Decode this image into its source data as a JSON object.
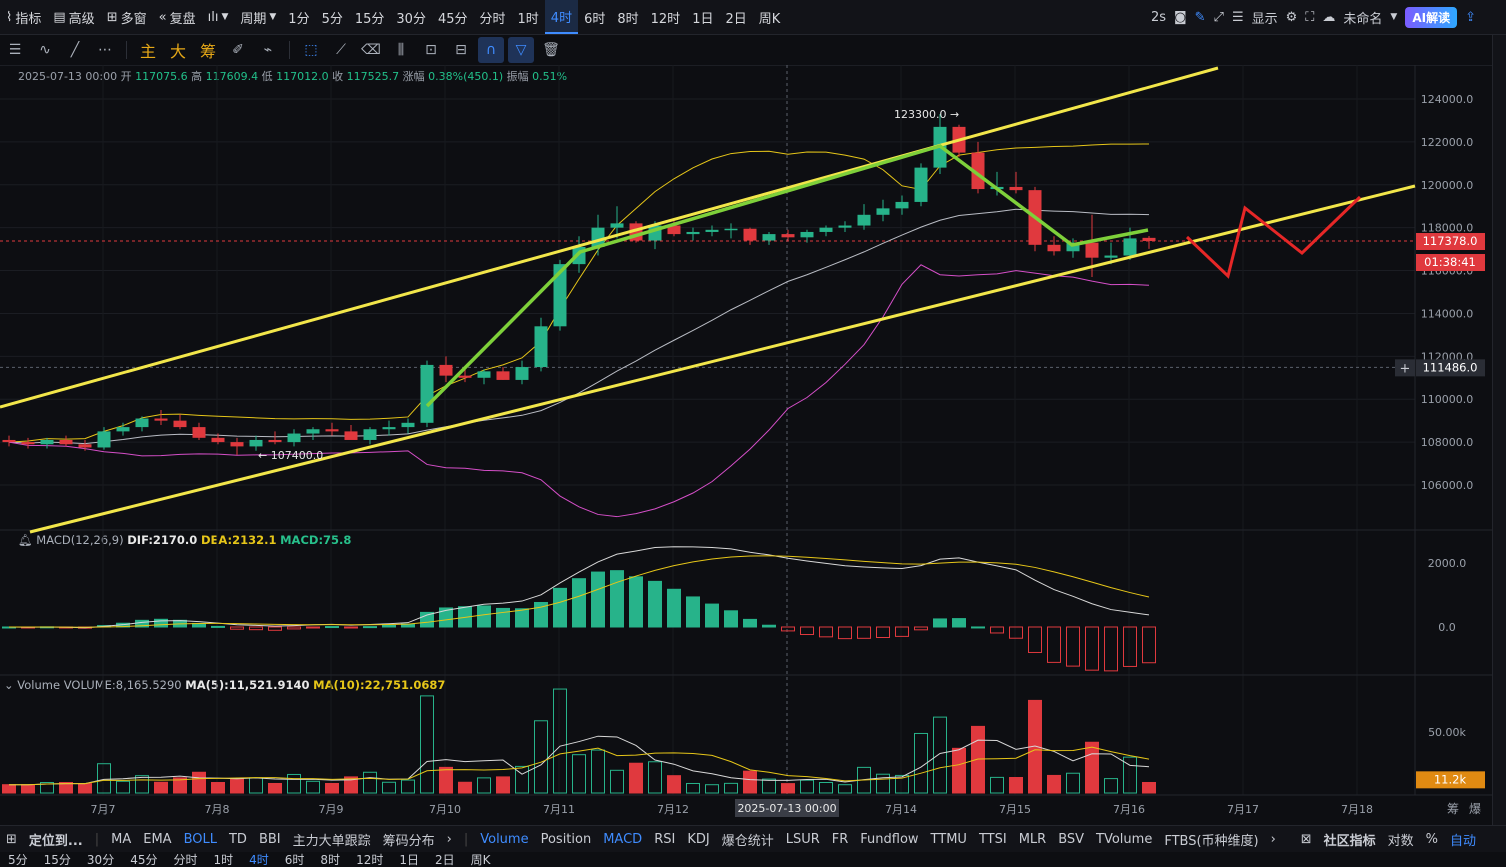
{
  "topbar": {
    "items": [
      "指标",
      "高级",
      "多窗",
      "复盘",
      "",
      "周期",
      "1分",
      "5分",
      "15分",
      "30分",
      "45分",
      "分时",
      "1时",
      "4时",
      "6时",
      "8时",
      "12时",
      "1日",
      "2日",
      "周K"
    ],
    "active_index": 13,
    "right": {
      "refresh": "2s",
      "display": "显示",
      "unnamed": "未命名",
      "ai": "AI解读"
    }
  },
  "toolbar": {
    "main": "主",
    "big": "大",
    "chips": "筹"
  },
  "ohlc": {
    "date": "2025-07-13 00:00",
    "open_label": "开",
    "open": "117075.6",
    "high_label": "高",
    "high": "117609.4",
    "low_label": "低",
    "low": "117012.0",
    "close_label": "收",
    "close": "117525.7",
    "chg_label": "涨幅",
    "chg": "0.38%(450.1)",
    "amp_label": "振幅",
    "amp": "0.51%"
  },
  "macd": {
    "name": "MACD(12,26,9)",
    "dif": "DIF:2170.0",
    "dea": "DEA:2132.1",
    "macd": "MACD:75.8"
  },
  "volume": {
    "name": "Volume",
    "vol": "VOLUME:8,165.5290",
    "ma5": "MA(5):11,521.9140",
    "ma10": "MA(10):22,751.0687"
  },
  "price_axis": [
    "124000.0",
    "122000.0",
    "120000.0",
    "118000.0",
    "116000.0",
    "114000.0",
    "112000.0",
    "110000.0",
    "108000.0",
    "106000.0"
  ],
  "price_tags": {
    "current": "117378.0",
    "countdown": "01:38:41",
    "crosshair": "111486.0"
  },
  "macd_axis": [
    "2000.0",
    "0.0"
  ],
  "vol_axis": {
    "tick": "50.00k",
    "tag": "11.2k"
  },
  "annotations": {
    "high": "123300.0",
    "low": "107400.0"
  },
  "x_axis": [
    "7月7",
    "7月8",
    "7月9",
    "7月10",
    "7月11",
    "7月12",
    "7月14",
    "7月15",
    "7月16",
    "7月17",
    "7月18"
  ],
  "x_cursor": "2025-07-13 00:00",
  "x_corner": [
    "筹",
    "爆"
  ],
  "bottombar": {
    "locate": "定位到...",
    "items": [
      "MA",
      "EMA",
      "BOLL",
      "TD",
      "BBI",
      "主力大单跟踪",
      "筹码分布"
    ],
    "active": "BOLL",
    "sub_items": [
      "Volume",
      "Position",
      "MACD",
      "RSI",
      "KDJ",
      "爆仓统计",
      "LSUR",
      "FR",
      "Fundflow",
      "TTMU",
      "TTSI",
      "MLR",
      "BSV",
      "TVolume",
      "FTBS(币种维度)"
    ],
    "sub_active": [
      "Volume",
      "MACD"
    ],
    "right": [
      "社区指标",
      "对数",
      "%",
      "自动"
    ],
    "right_active": "自动"
  },
  "bottom2": {
    "items": [
      "5分",
      "15分",
      "30分",
      "45分",
      "分时",
      "1时",
      "4时",
      "6时",
      "8时",
      "12时",
      "1日",
      "2日",
      "周K"
    ],
    "active": "4时"
  },
  "chart_data": {
    "type": "candlestick",
    "timeframe": "4时",
    "candles": [
      [
        108100,
        108300,
        107800,
        108000
      ],
      [
        108000,
        108200,
        107700,
        107900
      ],
      [
        107900,
        108200,
        107700,
        108100
      ],
      [
        108100,
        108300,
        107800,
        107900
      ],
      [
        107900,
        108100,
        107600,
        107750
      ],
      [
        107750,
        108700,
        107650,
        108500
      ],
      [
        108500,
        108900,
        108300,
        108700
      ],
      [
        108700,
        109200,
        108500,
        109100
      ],
      [
        109100,
        109500,
        108800,
        109000
      ],
      [
        109000,
        109300,
        108600,
        108700
      ],
      [
        108700,
        108900,
        108100,
        108200
      ],
      [
        108200,
        108400,
        107900,
        108000
      ],
      [
        108000,
        108200,
        107400,
        107800
      ],
      [
        107800,
        108300,
        107600,
        108100
      ],
      [
        108100,
        108500,
        107900,
        108000
      ],
      [
        108000,
        108600,
        107800,
        108400
      ],
      [
        108400,
        108700,
        108100,
        108600
      ],
      [
        108600,
        108900,
        108300,
        108500
      ],
      [
        108500,
        108800,
        108200,
        108100
      ],
      [
        108100,
        108700,
        107900,
        108600
      ],
      [
        108600,
        109000,
        108300,
        108700
      ],
      [
        108700,
        109100,
        108400,
        108900
      ],
      [
        108900,
        111800,
        108700,
        111600
      ],
      [
        111600,
        112000,
        110800,
        111100
      ],
      [
        111100,
        111500,
        110800,
        111000
      ],
      [
        111000,
        111400,
        110700,
        111300
      ],
      [
        111300,
        111500,
        110900,
        110900
      ],
      [
        110900,
        111800,
        110700,
        111500
      ],
      [
        111500,
        113800,
        111300,
        113400
      ],
      [
        113400,
        116500,
        113200,
        116300
      ],
      [
        116300,
        117600,
        115900,
        117100
      ],
      [
        117100,
        118600,
        116700,
        118000
      ],
      [
        118000,
        119000,
        117500,
        118200
      ],
      [
        118200,
        118300,
        117300,
        117400
      ],
      [
        117400,
        118300,
        117000,
        118100
      ],
      [
        118100,
        118300,
        117600,
        117700
      ],
      [
        117700,
        118000,
        117400,
        117800
      ],
      [
        117800,
        118100,
        117600,
        117900
      ],
      [
        117900,
        118200,
        117500,
        117950
      ],
      [
        117950,
        118000,
        117200,
        117400
      ],
      [
        117400,
        117800,
        117200,
        117700
      ],
      [
        117700,
        117900,
        117400,
        117550
      ],
      [
        117550,
        117900,
        117300,
        117800
      ],
      [
        117800,
        118100,
        117600,
        118000
      ],
      [
        118000,
        118300,
        117800,
        118100
      ],
      [
        118100,
        119100,
        117900,
        118600
      ],
      [
        118600,
        119300,
        118300,
        118900
      ],
      [
        118900,
        119500,
        118600,
        119200
      ],
      [
        119200,
        121000,
        119000,
        120800
      ],
      [
        120800,
        123300,
        120500,
        122700
      ],
      [
        122700,
        122800,
        121300,
        121500
      ],
      [
        121500,
        122000,
        119600,
        119800
      ],
      [
        119800,
        120600,
        119500,
        119900
      ],
      [
        119900,
        120600,
        119600,
        119750
      ],
      [
        119750,
        119900,
        116900,
        117200
      ],
      [
        117200,
        117600,
        116700,
        116900
      ],
      [
        116900,
        117500,
        116600,
        117300
      ],
      [
        117300,
        118600,
        115700,
        116600
      ],
      [
        116600,
        117300,
        116300,
        116700
      ],
      [
        116700,
        118000,
        116500,
        117500
      ],
      [
        117525,
        117609,
        117012,
        117378
      ]
    ],
    "bollinger": {
      "upper_end": 121900,
      "mid_end": 118600,
      "lower_end": 115200
    },
    "annotations": {
      "high": 123300,
      "low": 107400
    },
    "projection": [
      117500,
      116000,
      119000,
      116700,
      119400
    ]
  }
}
